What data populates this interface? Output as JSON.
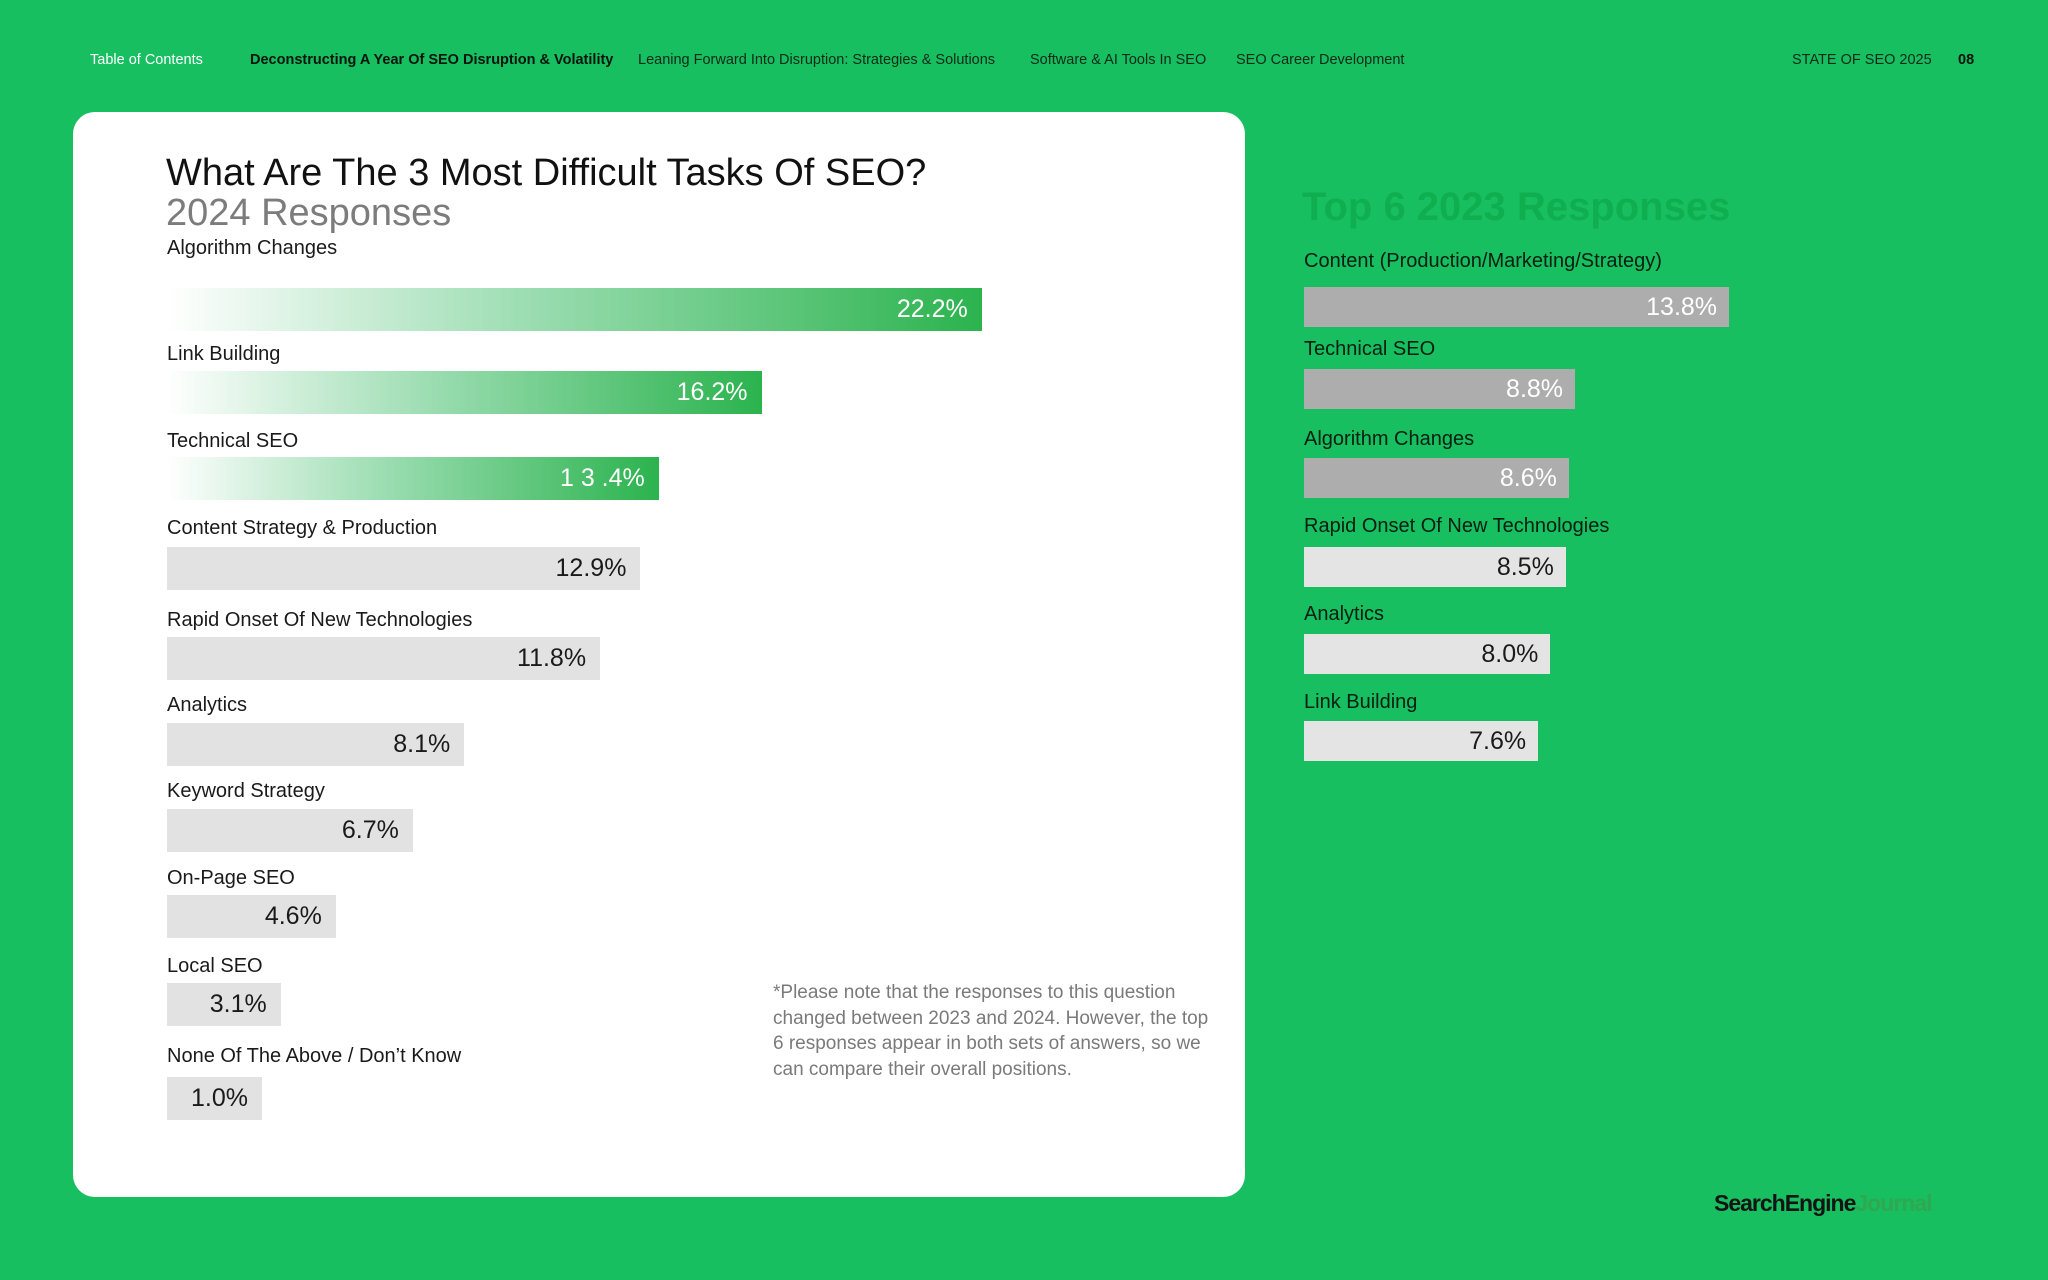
{
  "nav": {
    "items": [
      {
        "label": "Table of Contents",
        "state": "toc"
      },
      {
        "label": "Deconstructing A Year Of SEO Disruption & Volatility",
        "state": "active"
      },
      {
        "label": "Leaning Forward Into Disruption: Strategies & Solutions",
        "state": ""
      },
      {
        "label": "Software & AI Tools In SEO",
        "state": ""
      },
      {
        "label": "SEO Career Development",
        "state": ""
      }
    ],
    "report": "STATE OF SEO 2025",
    "page": "08"
  },
  "colors": {
    "background": "#17bf60",
    "highlight_bar": "#2bb34e",
    "bar_gray": "#e2e2e2",
    "bar_dark_gray": "#adadae",
    "right_title": "#0faf4f"
  },
  "note": "*Please note that the responses to this question changed between 2023 and 2024. However, the top 6 responses appear in both sets of answers, so we can compare their overall positions.",
  "logo": {
    "part1": "SearchEngine",
    "part2": "Journal"
  },
  "chart_data": [
    {
      "type": "bar",
      "orientation": "horizontal",
      "title": "What Are The 3 Most Difficult Tasks Of SEO?",
      "subtitle": "2024 Responses",
      "unit": "%",
      "categories": [
        "Algorithm Changes",
        "Link Building",
        "Technical SEO",
        "Content Strategy & Production",
        "Rapid Onset Of New Technologies",
        "Analytics",
        "Keyword Strategy",
        "On-Page SEO",
        "Local SEO",
        "None Of The Above / Don’t Know"
      ],
      "values": [
        22.2,
        16.2,
        13.4,
        12.9,
        11.8,
        8.1,
        6.7,
        4.6,
        3.1,
        1.0
      ],
      "value_labels": [
        "22.2%",
        "16.2%",
        "1 3 .4%",
        "12.9%",
        "11.8%",
        "8.1%",
        "6.7%",
        "4.6%",
        "3.1%",
        "1.0%"
      ],
      "highlighted_count": 3
    },
    {
      "type": "bar",
      "orientation": "horizontal",
      "title": "Top 6 2023 Responses",
      "unit": "%",
      "categories": [
        "Content (Production/Marketing/Strategy)",
        "Technical SEO",
        "Algorithm Changes",
        "Rapid Onset Of New Technologies",
        "Analytics",
        "Link Building"
      ],
      "values": [
        13.8,
        8.8,
        8.6,
        8.5,
        8.0,
        7.6
      ],
      "value_labels": [
        "13.8%",
        "8.8%",
        "8.6%",
        "8.5%",
        "8.0%",
        "7.6%"
      ],
      "dark_count": 3
    }
  ]
}
